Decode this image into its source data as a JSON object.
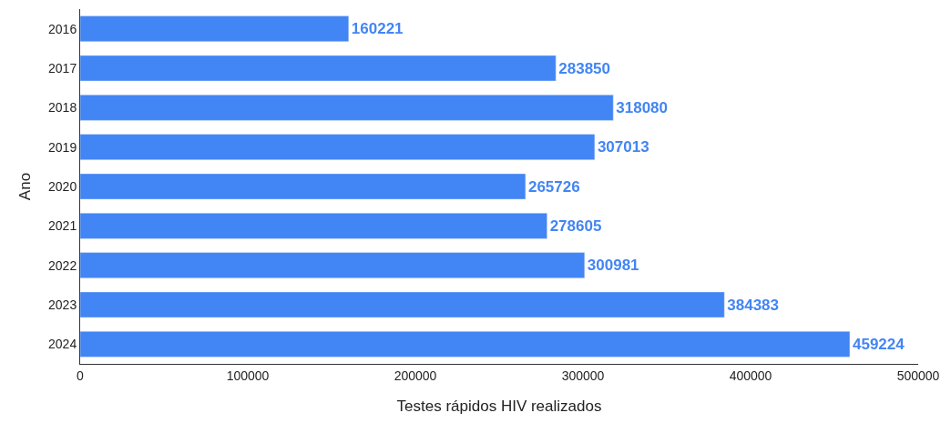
{
  "chart_data": {
    "type": "bar",
    "orientation": "horizontal",
    "categories": [
      "2016",
      "2017",
      "2018",
      "2019",
      "2020",
      "2021",
      "2022",
      "2023",
      "2024"
    ],
    "values": [
      160221,
      283850,
      318080,
      307013,
      265726,
      278605,
      300981,
      384383,
      459224
    ],
    "color": "#4285f4",
    "data_labels": true,
    "xlim": [
      0,
      500000
    ],
    "xticks": [
      0,
      100000,
      200000,
      300000,
      400000,
      500000
    ],
    "xlabel": "Testes rápidos HIV realizados",
    "ylabel": "Ano"
  }
}
